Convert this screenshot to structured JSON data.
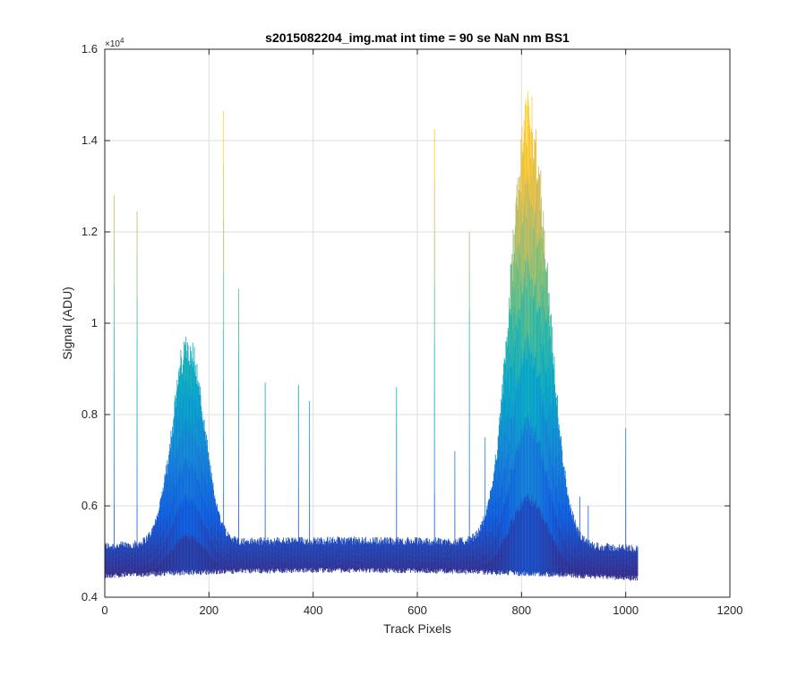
{
  "chart_data": {
    "type": "line",
    "title": "s2015082204_img.mat int time = 90 se  NaN nm BS1",
    "xlabel": "Track Pixels",
    "ylabel": "Signal (ADU)",
    "xlim": [
      0,
      1200
    ],
    "ylim": [
      4000,
      16000
    ],
    "x_ticks": [
      0,
      200,
      400,
      600,
      800,
      1000,
      1200
    ],
    "x_tick_labels": [
      "0",
      "200",
      "400",
      "600",
      "800",
      "1000",
      "1200"
    ],
    "y_ticks": [
      4000,
      6000,
      8000,
      10000,
      12000,
      14000,
      16000
    ],
    "y_tick_labels": [
      "0.4",
      "0.6",
      "0.8",
      "1",
      "1.2",
      "1.4",
      "1.6"
    ],
    "y_exponent_label": "×10",
    "y_exponent_power": "4",
    "grid": true,
    "colormap": "parula",
    "series_description": "Overlaid signal traces for each track row, colored by signal level",
    "x_extent": [
      0,
      1023
    ],
    "baseline_low": 4650,
    "baseline_high": 5150,
    "peaks": [
      {
        "center": 160,
        "width": 30,
        "amplitude": 9800
      },
      {
        "center": 815,
        "width": 36,
        "amplitude": 15100
      }
    ],
    "spikes": [
      {
        "x": 18,
        "y": 12800
      },
      {
        "x": 62,
        "y": 12450
      },
      {
        "x": 228,
        "y": 14650
      },
      {
        "x": 257,
        "y": 10750
      },
      {
        "x": 308,
        "y": 8700
      },
      {
        "x": 372,
        "y": 8650
      },
      {
        "x": 393,
        "y": 8300
      },
      {
        "x": 560,
        "y": 8600
      },
      {
        "x": 633,
        "y": 14250
      },
      {
        "x": 672,
        "y": 7200
      },
      {
        "x": 700,
        "y": 12000
      },
      {
        "x": 730,
        "y": 7500
      },
      {
        "x": 912,
        "y": 6200
      },
      {
        "x": 928,
        "y": 6000
      },
      {
        "x": 1000,
        "y": 7700
      }
    ],
    "colormap_stops": [
      "#352a87",
      "#0f5cdd",
      "#1481d6",
      "#06a4ca",
      "#2eb7a4",
      "#87bf77",
      "#d1bb59",
      "#fec832",
      "#f9fb0e"
    ]
  }
}
